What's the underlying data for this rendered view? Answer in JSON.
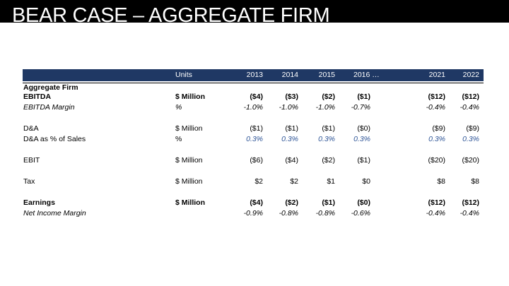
{
  "title": "BEAR CASE – AGGREGATE FIRM",
  "table": {
    "header": {
      "units": "Units",
      "years": [
        "2013",
        "2014",
        "2015",
        "2016 …",
        "2021",
        "2022"
      ]
    },
    "section": "Aggregate Firm",
    "rows": {
      "ebitda": {
        "label": "EBITDA",
        "unit": "$ Million",
        "values": [
          "($4)",
          "($3)",
          "($2)",
          "($1)",
          "($12)",
          "($12)"
        ]
      },
      "ebitda_margin": {
        "label": "EBITDA Margin",
        "unit": "%",
        "values": [
          "-1.0%",
          "-1.0%",
          "-1.0%",
          "-0.7%",
          "-0.4%",
          "-0.4%"
        ]
      },
      "da": {
        "label": "D&A",
        "unit": "$ Million",
        "values": [
          "($1)",
          "($1)",
          "($1)",
          "($0)",
          "($9)",
          "($9)"
        ]
      },
      "da_pct": {
        "label": "D&A as % of Sales",
        "unit": "%",
        "values": [
          "0.3%",
          "0.3%",
          "0.3%",
          "0.3%",
          "0.3%",
          "0.3%"
        ]
      },
      "ebit": {
        "label": "EBIT",
        "unit": "$ Million",
        "values": [
          "($6)",
          "($4)",
          "($2)",
          "($1)",
          "($20)",
          "($20)"
        ]
      },
      "tax": {
        "label": "Tax",
        "unit": "$ Million",
        "values": [
          "$2",
          "$2",
          "$1",
          "$0",
          "$8",
          "$8"
        ]
      },
      "earnings": {
        "label": "Earnings",
        "unit": "$ Million",
        "values": [
          "($4)",
          "($2)",
          "($1)",
          "($0)",
          "($12)",
          "($12)"
        ]
      },
      "net_margin": {
        "label": "Net Income Margin",
        "unit": "",
        "values": [
          "-0.9%",
          "-0.8%",
          "-0.8%",
          "-0.6%",
          "-0.4%",
          "-0.4%"
        ]
      }
    }
  },
  "colors": {
    "header_bg": "#1f3864",
    "assumption_blue": "#2f5597"
  }
}
